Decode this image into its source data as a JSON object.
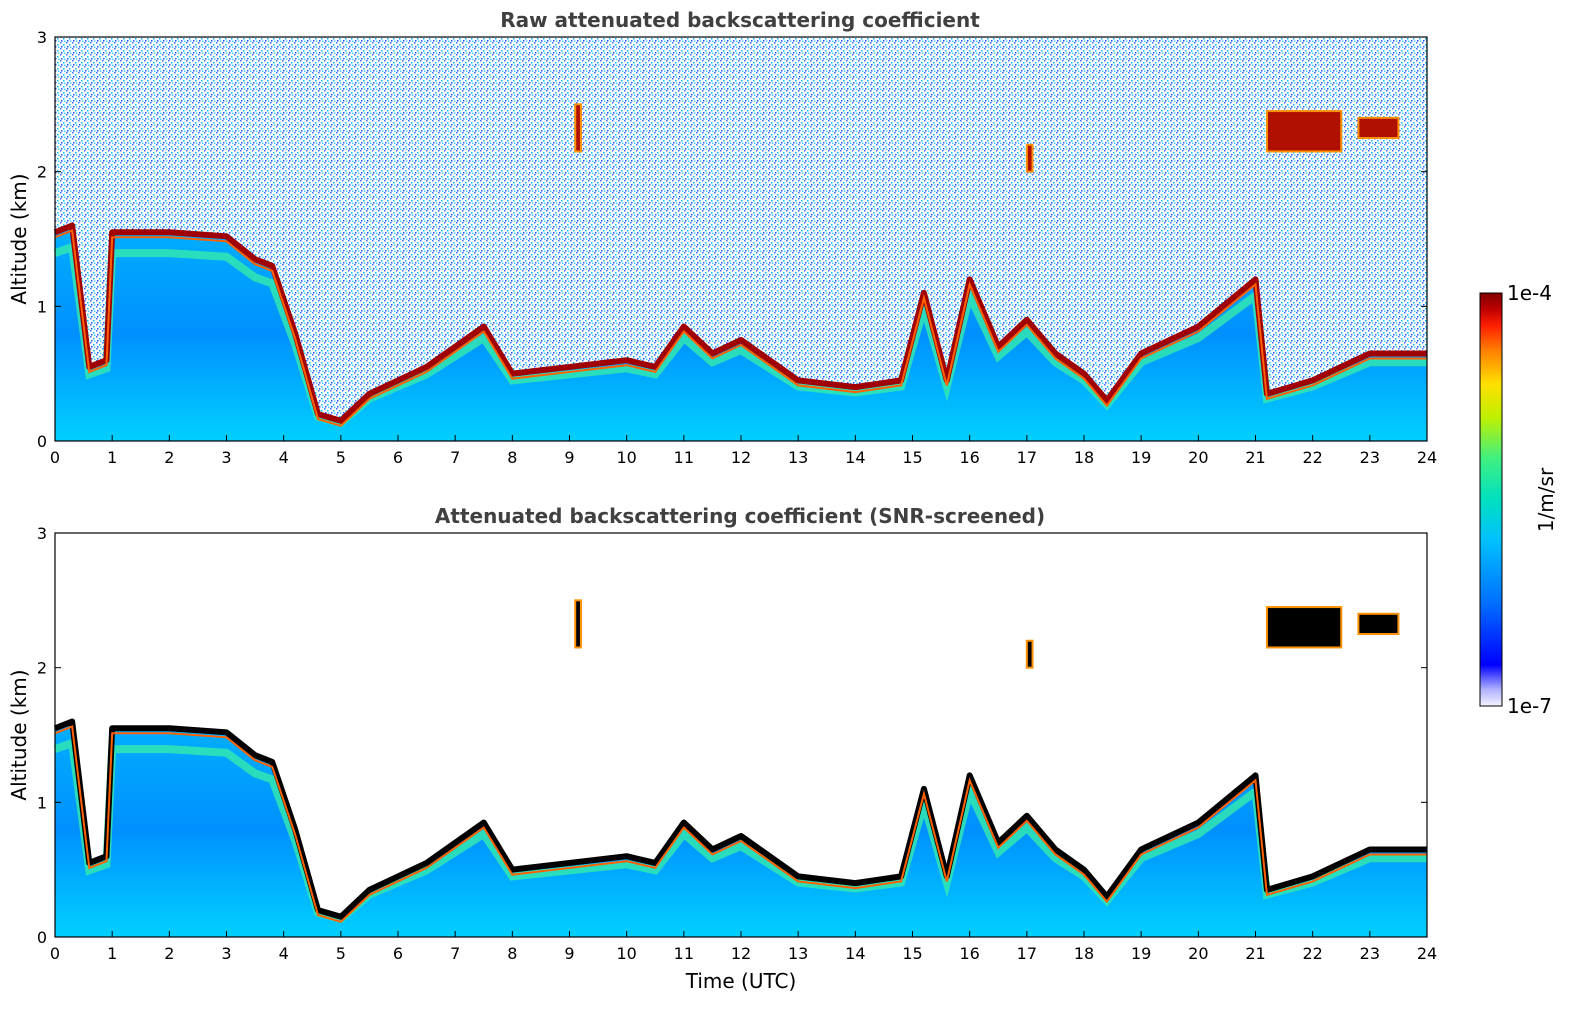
{
  "chart_data": [
    {
      "type": "heatmap",
      "title": "Raw attenuated backscattering coefficient",
      "xlabel": "",
      "ylabel": "Altitude (km)",
      "xlim": [
        0,
        24
      ],
      "ylim": [
        0,
        3
      ],
      "xticks": [
        "0",
        "1",
        "2",
        "3",
        "4",
        "5",
        "6",
        "7",
        "8",
        "9",
        "10",
        "11",
        "12",
        "13",
        "14",
        "15",
        "16",
        "17",
        "18",
        "19",
        "20",
        "21",
        "22",
        "23",
        "24"
      ],
      "yticks": [
        "0",
        "1",
        "2",
        "3"
      ],
      "screened": false,
      "boundary_layer_top_km": [
        [
          0.0,
          1.55
        ],
        [
          0.3,
          1.6
        ],
        [
          0.6,
          0.55
        ],
        [
          0.9,
          0.6
        ],
        [
          1.0,
          1.55
        ],
        [
          2.0,
          1.55
        ],
        [
          3.0,
          1.52
        ],
        [
          3.5,
          1.35
        ],
        [
          3.8,
          1.3
        ],
        [
          4.2,
          0.8
        ],
        [
          4.6,
          0.2
        ],
        [
          5.0,
          0.15
        ],
        [
          5.5,
          0.35
        ],
        [
          6.5,
          0.55
        ],
        [
          7.5,
          0.85
        ],
        [
          8.0,
          0.5
        ],
        [
          9.0,
          0.55
        ],
        [
          10.0,
          0.6
        ],
        [
          10.5,
          0.55
        ],
        [
          11.0,
          0.85
        ],
        [
          11.5,
          0.65
        ],
        [
          12.0,
          0.75
        ],
        [
          12.5,
          0.6
        ],
        [
          13.0,
          0.45
        ],
        [
          14.0,
          0.4
        ],
        [
          14.8,
          0.45
        ],
        [
          15.2,
          1.1
        ],
        [
          15.6,
          0.45
        ],
        [
          16.0,
          1.2
        ],
        [
          16.5,
          0.7
        ],
        [
          17.0,
          0.9
        ],
        [
          17.5,
          0.65
        ],
        [
          18.0,
          0.5
        ],
        [
          18.4,
          0.3
        ],
        [
          19.0,
          0.65
        ],
        [
          20.0,
          0.85
        ],
        [
          21.0,
          1.2
        ],
        [
          21.2,
          0.35
        ],
        [
          22.0,
          0.45
        ],
        [
          23.0,
          0.65
        ],
        [
          24.0,
          0.65
        ]
      ],
      "cloud_layers": [
        {
          "start": 21.2,
          "end": 22.5,
          "bottom_km": 2.15,
          "top_km": 2.45
        },
        {
          "start": 22.8,
          "end": 23.5,
          "bottom_km": 2.25,
          "top_km": 2.4
        },
        {
          "start": 17.0,
          "end": 17.1,
          "bottom_km": 2.0,
          "top_km": 2.2
        },
        {
          "start": 9.1,
          "end": 9.2,
          "bottom_km": 2.15,
          "top_km": 2.5
        }
      ]
    },
    {
      "type": "heatmap",
      "title": "Attenuated backscattering coefficient (SNR-screened)",
      "xlabel": "Time (UTC)",
      "ylabel": "Altitude (km)",
      "xlim": [
        0,
        24
      ],
      "ylim": [
        0,
        3
      ],
      "xticks": [
        "0",
        "1",
        "2",
        "3",
        "4",
        "5",
        "6",
        "7",
        "8",
        "9",
        "10",
        "11",
        "12",
        "13",
        "14",
        "15",
        "16",
        "17",
        "18",
        "19",
        "20",
        "21",
        "22",
        "23",
        "24"
      ],
      "yticks": [
        "0",
        "1",
        "2",
        "3"
      ],
      "screened": true
    }
  ],
  "colorbar": {
    "label": "1/m/sr",
    "max_label": "1e-4",
    "min_label": "1e-7",
    "scale": "log",
    "colormap": [
      "#ffffff",
      "#e8e8ff",
      "#0000ff",
      "#0070ff",
      "#00c0ff",
      "#00e0c0",
      "#40f080",
      "#c0f000",
      "#ffe000",
      "#ff8000",
      "#ff2000",
      "#c00000",
      "#800000"
    ]
  }
}
